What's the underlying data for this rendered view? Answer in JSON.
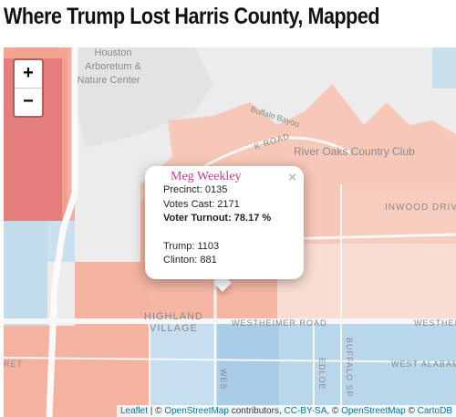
{
  "page": {
    "title": "Where Trump Lost Harris County, Mapped"
  },
  "map": {
    "zoom_in": "+",
    "zoom_out": "−",
    "labels": {
      "arboretum_1": "Houston",
      "arboretum_2": "Arboretum &",
      "arboretum_3": "Nature Center",
      "buffalo_bayou": "Buffalo Bayou",
      "river_oaks": "River Oaks Country Club",
      "inwood": "INWOOD DRIVE",
      "highland": "HIGHLAND",
      "village": "VILLAGE",
      "westheimer": "WESTHEIMER ROAD",
      "westhei": "WESTHEI",
      "west_alabama": "WEST ALABAM",
      "buffalo_speedway": "BUFFALO SP",
      "edloe": "EDLOE",
      "wes": "WES",
      "oak_rd": "K ROAD",
      "ret": "RET"
    },
    "colors": {
      "clinton_light": "#b9d7ea",
      "trump_light": "#f7c7b8",
      "trump_mid": "#f3a592",
      "trump_strong": "#e56b6b",
      "land": "#ececec"
    }
  },
  "popup": {
    "name": "Meg Weekley",
    "precinct": "Precinct: 0135",
    "votes_cast": "Votes Cast: 2171",
    "turnout": "Voter Turnout: 78.17 %",
    "trump": "Trump: 1103",
    "clinton": "Clinton: 881",
    "close": "×"
  },
  "attribution": {
    "leaflet": "Leaflet",
    "sep1": " | © ",
    "osm1": "OpenStreetMap",
    "contrib": " contributors, ",
    "license": "CC-BY-SA",
    "sep2": ", © ",
    "osm2": "OpenStreetMap",
    "sep3": " © ",
    "carto": "CartoDB"
  }
}
